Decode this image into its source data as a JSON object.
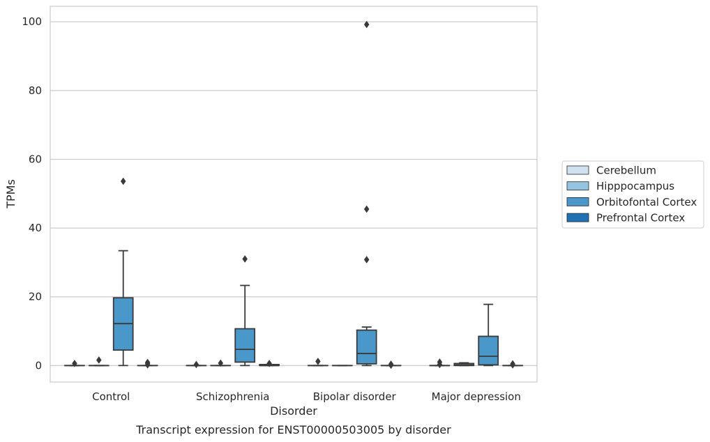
{
  "chart_data": {
    "type": "box",
    "caption": "Transcript expression for ENST00000503005 by disorder",
    "xlabel": "Disorder",
    "ylabel": "TPMs",
    "ylim": [
      -4.8,
      104.5
    ],
    "yticks": [
      0,
      20,
      40,
      60,
      80,
      100
    ],
    "grid": "horizontal",
    "legend_position": "right",
    "categories": [
      "Control",
      "Schizophrenia",
      "Bipolar disorder",
      "Major depression"
    ],
    "series": [
      {
        "name": "Cerebellum",
        "color": "#d0e1f2",
        "boxes": [
          {
            "q1": 0,
            "median": 0,
            "q3": 0,
            "whisker_low": 0,
            "whisker_high": 0,
            "outliers": [
              0.6
            ]
          },
          {
            "q1": 0,
            "median": 0,
            "q3": 0,
            "whisker_low": 0,
            "whisker_high": 0,
            "outliers": [
              0.3
            ]
          },
          {
            "q1": 0,
            "median": 0,
            "q3": 0,
            "whisker_low": 0,
            "whisker_high": 0,
            "outliers": [
              1.2
            ]
          },
          {
            "q1": 0,
            "median": 0,
            "q3": 0,
            "whisker_low": 0,
            "whisker_high": 0,
            "outliers": [
              0.3,
              1.0
            ]
          }
        ]
      },
      {
        "name": "Hipppocampus",
        "color": "#94c4df",
        "boxes": [
          {
            "q1": 0,
            "median": 0,
            "q3": 0,
            "whisker_low": 0,
            "whisker_high": 0,
            "outliers": [
              1.6
            ]
          },
          {
            "q1": 0,
            "median": 0,
            "q3": 0,
            "whisker_low": 0,
            "whisker_high": 0,
            "outliers": [
              0.7
            ]
          },
          {
            "q1": 0,
            "median": 0,
            "q3": 0,
            "whisker_low": 0,
            "whisker_high": 0,
            "outliers": []
          },
          {
            "q1": 0,
            "median": 0.2,
            "q3": 0.6,
            "whisker_low": 0,
            "whisker_high": 0.8,
            "outliers": []
          }
        ]
      },
      {
        "name": "Orbitofontal Cortex",
        "color": "#4a98c9",
        "boxes": [
          {
            "q1": 4.5,
            "median": 12.2,
            "q3": 19.7,
            "whisker_low": 0,
            "whisker_high": 33.4,
            "outliers": [
              53.6
            ]
          },
          {
            "q1": 1.0,
            "median": 4.7,
            "q3": 10.7,
            "whisker_low": 0,
            "whisker_high": 23.3,
            "outliers": [
              31.0
            ]
          },
          {
            "q1": 0.5,
            "median": 3.5,
            "q3": 10.3,
            "whisker_low": 0,
            "whisker_high": 11.2,
            "outliers": [
              30.8,
              45.5,
              99.2
            ]
          },
          {
            "q1": 0.2,
            "median": 2.7,
            "q3": 8.5,
            "whisker_low": 0,
            "whisker_high": 17.8,
            "outliers": []
          }
        ]
      },
      {
        "name": "Prefrontal Cortex",
        "color": "#2171b5",
        "boxes": [
          {
            "q1": 0,
            "median": 0,
            "q3": 0,
            "whisker_low": 0,
            "whisker_high": 0,
            "outliers": [
              0.2,
              0.6,
              0.9
            ]
          },
          {
            "q1": 0,
            "median": 0,
            "q3": 0.3,
            "whisker_low": 0,
            "whisker_high": 0.3,
            "outliers": [
              0.6
            ]
          },
          {
            "q1": 0,
            "median": 0,
            "q3": 0,
            "whisker_low": 0,
            "whisker_high": 0,
            "outliers": [
              0.1,
              0.4
            ]
          },
          {
            "q1": 0,
            "median": 0,
            "q3": 0,
            "whisker_low": 0,
            "whisker_high": 0,
            "outliers": [
              0.2,
              0.5
            ]
          }
        ]
      }
    ]
  }
}
